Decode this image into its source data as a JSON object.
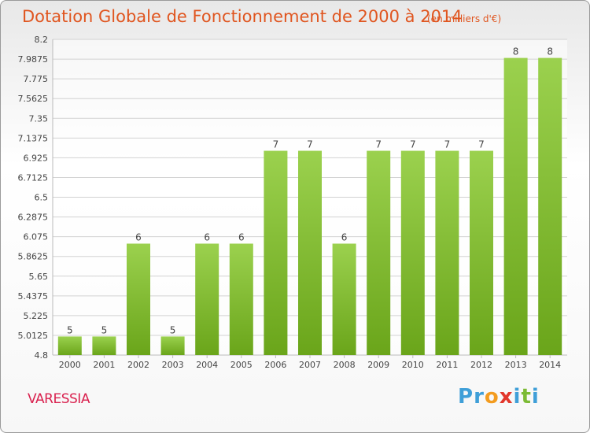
{
  "chart_data": {
    "type": "bar",
    "title": "Dotation Globale de Fonctionnement de 2000 à 2014",
    "unit_note": "(en milliers d'€)",
    "categories": [
      "2000",
      "2001",
      "2002",
      "2003",
      "2004",
      "2005",
      "2006",
      "2007",
      "2008",
      "2009",
      "2010",
      "2011",
      "2012",
      "2013",
      "2014"
    ],
    "values": [
      5,
      5,
      6,
      5,
      6,
      6,
      7,
      7,
      6,
      7,
      7,
      7,
      7,
      8,
      8
    ],
    "bar_labels": [
      "5",
      "5",
      "6",
      "5",
      "6",
      "6",
      "7",
      "7",
      "6",
      "7",
      "7",
      "7",
      "7",
      "8",
      "8"
    ],
    "ylim": [
      4.8,
      8.2
    ],
    "yticks": [
      "4.8",
      "5.0125",
      "5.225",
      "5.4375",
      "5.65",
      "5.8625",
      "6.075",
      "6.2875",
      "6.5",
      "6.7125",
      "6.925",
      "7.1375",
      "7.35",
      "7.5625",
      "7.775",
      "7.9875",
      "8.2"
    ],
    "xlabel": "",
    "ylabel": "",
    "grid": true,
    "bar_color": "#8cc63f"
  },
  "footer": {
    "commune": "VARESSIA",
    "logo": [
      "P",
      "r",
      "o",
      "x",
      "i",
      "t",
      "i"
    ]
  },
  "colors": {
    "title": "#e0551f",
    "commune": "#d9224f",
    "logo": [
      "#3f9fd8",
      "#3f9fd8",
      "#f39c1f",
      "#e2372c",
      "#3f9fd8",
      "#7cbb35",
      "#3f9fd8"
    ]
  }
}
